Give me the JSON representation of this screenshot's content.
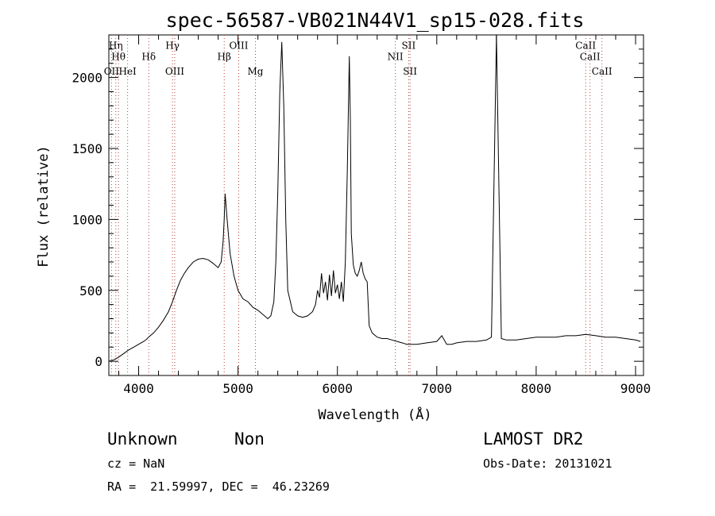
{
  "chart_data": {
    "type": "line",
    "title": "spec-56587-VB021N44V1_sp15-028.fits",
    "xlabel": "Wavelength (Å)",
    "ylabel": "Flux (relative)",
    "xlim": [
      3700,
      9080
    ],
    "ylim": [
      -100,
      2300
    ],
    "xticks": [
      4000,
      5000,
      6000,
      7000,
      8000,
      9000
    ],
    "yticks": [
      0,
      500,
      1000,
      1500,
      2000
    ],
    "series": [
      {
        "x": [
          3700,
          3750,
          3800,
          3850,
          3900,
          3950,
          4000,
          4050,
          4080,
          4100,
          4150,
          4200,
          4250,
          4300,
          4340,
          4380,
          4420,
          4460,
          4500,
          4550,
          4600,
          4650,
          4700,
          4750,
          4800,
          4830,
          4850,
          4861,
          4870,
          4890,
          4920,
          4960,
          5000,
          5050,
          5100,
          5150,
          5200,
          5250,
          5300,
          5330,
          5360,
          5380,
          5400,
          5420,
          5440,
          5460,
          5480,
          5500,
          5550,
          5600,
          5650,
          5700,
          5750,
          5780,
          5800,
          5820,
          5840,
          5860,
          5880,
          5900,
          5920,
          5940,
          5960,
          5980,
          6000,
          6020,
          6040,
          6060,
          6080,
          6100,
          6120,
          6130,
          6140,
          6160,
          6180,
          6200,
          6220,
          6240,
          6260,
          6280,
          6300,
          6320,
          6350,
          6400,
          6450,
          6500,
          6550,
          6600,
          6650,
          6700,
          6800,
          6900,
          7000,
          7050,
          7100,
          7150,
          7200,
          7300,
          7400,
          7500,
          7550,
          7600,
          7650,
          7700,
          7800,
          7900,
          8000,
          8100,
          8200,
          8300,
          8400,
          8500,
          8600,
          8700,
          8800,
          8900,
          9000,
          9050
        ],
        "values": [
          0,
          10,
          30,
          55,
          80,
          100,
          120,
          140,
          155,
          170,
          200,
          240,
          290,
          350,
          420,
          500,
          570,
          620,
          660,
          700,
          720,
          725,
          715,
          690,
          660,
          700,
          850,
          1000,
          1180,
          1000,
          760,
          600,
          500,
          440,
          420,
          380,
          360,
          330,
          300,
          320,
          420,
          700,
          1200,
          1900,
          2250,
          1800,
          1000,
          500,
          350,
          320,
          310,
          320,
          350,
          400,
          500,
          450,
          620,
          480,
          560,
          430,
          610,
          460,
          640,
          480,
          540,
          440,
          560,
          420,
          700,
          1350,
          2150,
          1700,
          900,
          680,
          620,
          600,
          640,
          700,
          620,
          580,
          560,
          250,
          200,
          170,
          160,
          160,
          150,
          140,
          130,
          120,
          120,
          130,
          140,
          180,
          120,
          120,
          130,
          140,
          140,
          150,
          170,
          2300,
          160,
          150,
          150,
          160,
          170,
          170,
          170,
          180,
          180,
          190,
          180,
          170,
          170,
          160,
          150,
          140
        ]
      }
    ],
    "emission_lines": [
      {
        "x": 3770,
        "y": 2202,
        "label": "Hη"
      },
      {
        "x": 3797,
        "y": 2125,
        "label": "Hθ"
      },
      {
        "x": 3727,
        "y": 2020,
        "label": "OII"
      },
      {
        "x": 3889,
        "y": 2020,
        "label": "HeI"
      },
      {
        "x": 4102,
        "y": 2125,
        "label": "Hδ"
      },
      {
        "x": 4340,
        "y": 2202,
        "label": "Hγ"
      },
      {
        "x": 4363,
        "y": 2020,
        "label": "OIII"
      },
      {
        "x": 4861,
        "y": 2125,
        "label": "Hβ"
      },
      {
        "x": 5007,
        "y": 2202,
        "label": "OIII"
      },
      {
        "x": 5175,
        "y": 2020,
        "label": "Mg"
      },
      {
        "x": 6583,
        "y": 2125,
        "label": "NII"
      },
      {
        "x": 6717,
        "y": 2202,
        "label": "SII"
      },
      {
        "x": 6731,
        "y": 2020,
        "label": "SII"
      },
      {
        "x": 8498,
        "y": 2202,
        "label": "CaII"
      },
      {
        "x": 8542,
        "y": 2125,
        "label": "CaII"
      },
      {
        "x": 8662,
        "y": 2020,
        "label": "CaII"
      }
    ]
  },
  "info": {
    "class": "Unknown",
    "subclass": "Non",
    "survey": "LAMOST DR2",
    "cz": "cz = NaN",
    "obs_date": "Obs-Date: 20131021",
    "radec": "RA =  21.59997, DEC =  46.23269"
  }
}
